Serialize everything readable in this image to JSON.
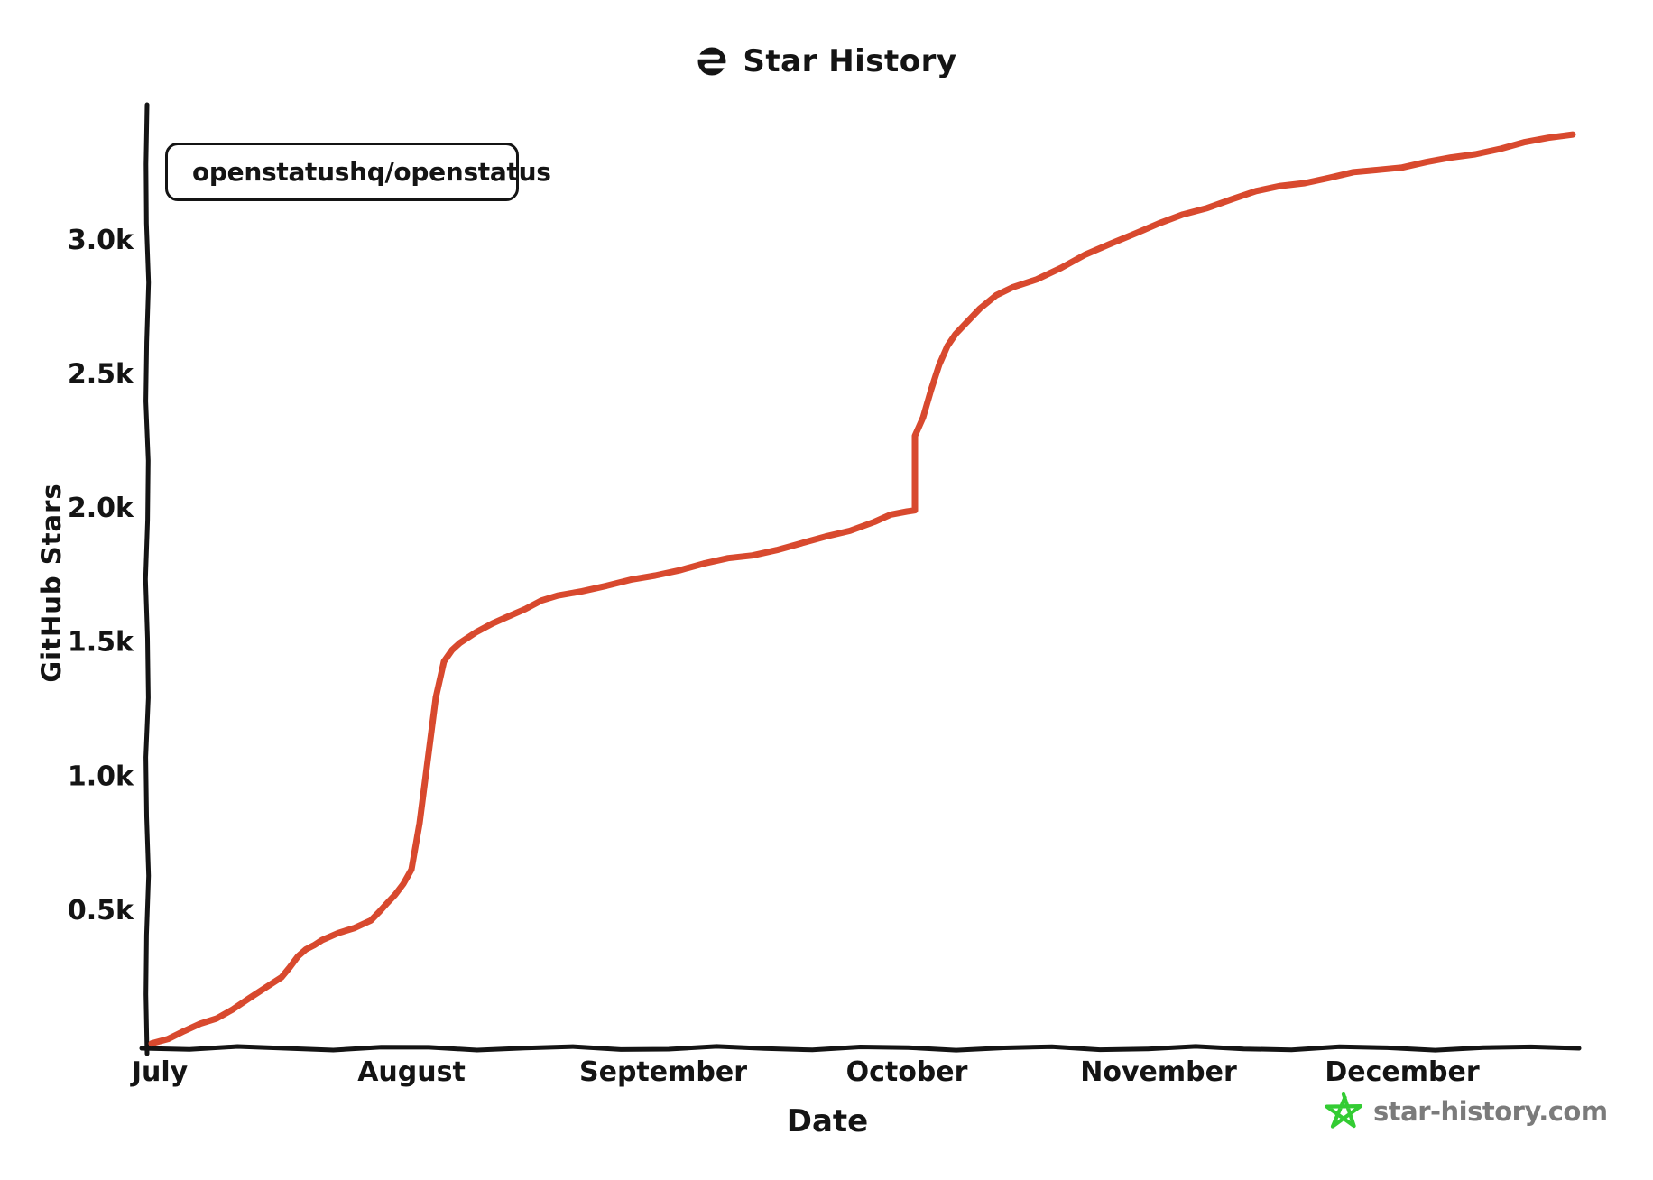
{
  "header": {
    "title": "Star History"
  },
  "legend": {
    "items": [
      {
        "label": "openstatushq/openstatus",
        "color": "#d8492e"
      }
    ]
  },
  "axes": {
    "x": {
      "title": "Date",
      "ticks": [
        {
          "label": "July",
          "date": "2023-07-01"
        },
        {
          "label": "August",
          "date": "2023-08-01"
        },
        {
          "label": "September",
          "date": "2023-09-01"
        },
        {
          "label": "October",
          "date": "2023-10-01"
        },
        {
          "label": "November",
          "date": "2023-11-01"
        },
        {
          "label": "December",
          "date": "2023-12-01"
        }
      ]
    },
    "y": {
      "title": "GitHub Stars",
      "ticks": [
        {
          "label": "0.5k",
          "value": 500
        },
        {
          "label": "1.0k",
          "value": 1000
        },
        {
          "label": "1.5k",
          "value": 1500
        },
        {
          "label": "2.0k",
          "value": 2000
        },
        {
          "label": "2.5k",
          "value": 2500
        },
        {
          "label": "3.0k",
          "value": 3000
        }
      ]
    }
  },
  "footer": {
    "watermark": "star-history.com",
    "star_color": "#33cc33",
    "text_color": "#7b7b7b"
  },
  "colors": {
    "axis": "#141414",
    "background": "#ffffff",
    "series_red": "#d8492e"
  },
  "chart_data": {
    "type": "line",
    "title": "Star History",
    "xlabel": "Date",
    "ylabel": "GitHub Stars",
    "x_range": [
      "2023-06-30",
      "2023-12-22"
    ],
    "ylim": [
      0,
      3450
    ],
    "grid": false,
    "legend_position": "top-left",
    "series": [
      {
        "name": "openstatushq/openstatus",
        "color": "#d8492e",
        "points": [
          [
            "2023-06-30",
            0
          ],
          [
            "2023-07-02",
            20
          ],
          [
            "2023-07-04",
            45
          ],
          [
            "2023-07-06",
            70
          ],
          [
            "2023-07-08",
            95
          ],
          [
            "2023-07-10",
            130
          ],
          [
            "2023-07-12",
            165
          ],
          [
            "2023-07-14",
            205
          ],
          [
            "2023-07-16",
            250
          ],
          [
            "2023-07-17",
            285
          ],
          [
            "2023-07-18",
            320
          ],
          [
            "2023-07-19",
            350
          ],
          [
            "2023-07-20",
            370
          ],
          [
            "2023-07-21",
            385
          ],
          [
            "2023-07-23",
            408
          ],
          [
            "2023-07-25",
            432
          ],
          [
            "2023-07-27",
            462
          ],
          [
            "2023-07-28",
            487
          ],
          [
            "2023-07-29",
            520
          ],
          [
            "2023-07-30",
            558
          ],
          [
            "2023-07-31",
            597
          ],
          [
            "2023-08-01",
            645
          ],
          [
            "2023-08-02",
            820
          ],
          [
            "2023-08-03",
            1060
          ],
          [
            "2023-08-04",
            1290
          ],
          [
            "2023-08-05",
            1420
          ],
          [
            "2023-08-06",
            1468
          ],
          [
            "2023-08-07",
            1498
          ],
          [
            "2023-08-09",
            1532
          ],
          [
            "2023-08-11",
            1563
          ],
          [
            "2023-08-13",
            1596
          ],
          [
            "2023-08-15",
            1622
          ],
          [
            "2023-08-17",
            1648
          ],
          [
            "2023-08-19",
            1668
          ],
          [
            "2023-08-22",
            1690
          ],
          [
            "2023-08-25",
            1707
          ],
          [
            "2023-08-28",
            1725
          ],
          [
            "2023-08-31",
            1745
          ],
          [
            "2023-09-03",
            1768
          ],
          [
            "2023-09-06",
            1788
          ],
          [
            "2023-09-09",
            1806
          ],
          [
            "2023-09-12",
            1822
          ],
          [
            "2023-09-15",
            1843
          ],
          [
            "2023-09-18",
            1862
          ],
          [
            "2023-09-21",
            1888
          ],
          [
            "2023-09-24",
            1915
          ],
          [
            "2023-09-27",
            1946
          ],
          [
            "2023-09-29",
            1968
          ],
          [
            "2023-10-01",
            1983
          ],
          [
            "2023-10-02",
            1992
          ],
          [
            "2023-10-02",
            2265
          ],
          [
            "2023-10-03",
            2330
          ],
          [
            "2023-10-04",
            2440
          ],
          [
            "2023-10-05",
            2535
          ],
          [
            "2023-10-06",
            2598
          ],
          [
            "2023-10-07",
            2642
          ],
          [
            "2023-10-08",
            2680
          ],
          [
            "2023-10-10",
            2742
          ],
          [
            "2023-10-12",
            2786
          ],
          [
            "2023-10-14",
            2818
          ],
          [
            "2023-10-17",
            2853
          ],
          [
            "2023-10-20",
            2892
          ],
          [
            "2023-10-23",
            2938
          ],
          [
            "2023-10-26",
            2982
          ],
          [
            "2023-10-29",
            3022
          ],
          [
            "2023-11-01",
            3055
          ],
          [
            "2023-11-04",
            3088
          ],
          [
            "2023-11-07",
            3118
          ],
          [
            "2023-11-10",
            3150
          ],
          [
            "2023-11-13",
            3175
          ],
          [
            "2023-11-16",
            3196
          ],
          [
            "2023-11-19",
            3212
          ],
          [
            "2023-11-22",
            3228
          ],
          [
            "2023-11-25",
            3245
          ],
          [
            "2023-11-28",
            3258
          ],
          [
            "2023-12-01",
            3270
          ],
          [
            "2023-12-04",
            3285
          ],
          [
            "2023-12-07",
            3300
          ],
          [
            "2023-12-10",
            3318
          ],
          [
            "2023-12-13",
            3338
          ],
          [
            "2023-12-16",
            3357
          ],
          [
            "2023-12-19",
            3375
          ],
          [
            "2023-12-22",
            3393
          ]
        ]
      }
    ]
  }
}
